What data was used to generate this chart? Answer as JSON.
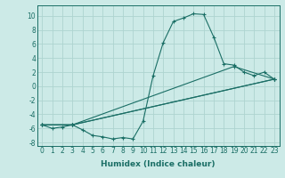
{
  "xlabel": "Humidex (Indice chaleur)",
  "x_min": -0.5,
  "x_max": 23.5,
  "y_min": -8.5,
  "y_max": 11.5,
  "background_color": "#cceae7",
  "grid_color": "#aed4d0",
  "line_color": "#1a6e65",
  "lines": [
    {
      "x": [
        0,
        1,
        2,
        3,
        4,
        5,
        6,
        7,
        8,
        9,
        10,
        11,
        12,
        13,
        14,
        15,
        16,
        17,
        18,
        19,
        20,
        21,
        22,
        23
      ],
      "y": [
        -5.5,
        -6.0,
        -5.8,
        -5.5,
        -6.2,
        -7.0,
        -7.2,
        -7.5,
        -7.3,
        -7.5,
        -5.0,
        1.5,
        6.2,
        9.2,
        9.7,
        10.3,
        10.2,
        7.0,
        3.2,
        3.0,
        2.0,
        1.5,
        2.0,
        1.0
      ]
    },
    {
      "x": [
        0,
        3,
        23
      ],
      "y": [
        -5.5,
        -5.5,
        1.0
      ]
    },
    {
      "x": [
        0,
        3,
        19,
        23
      ],
      "y": [
        -5.5,
        -5.5,
        2.8,
        1.0
      ]
    },
    {
      "x": [
        0,
        3,
        23
      ],
      "y": [
        -5.5,
        -5.5,
        1.0
      ]
    }
  ],
  "yticks": [
    -8,
    -6,
    -4,
    -2,
    0,
    2,
    4,
    6,
    8,
    10
  ],
  "xticks": [
    0,
    1,
    2,
    3,
    4,
    5,
    6,
    7,
    8,
    9,
    10,
    11,
    12,
    13,
    14,
    15,
    16,
    17,
    18,
    19,
    20,
    21,
    22,
    23
  ],
  "tick_fontsize": 5.5,
  "xlabel_fontsize": 6.5
}
